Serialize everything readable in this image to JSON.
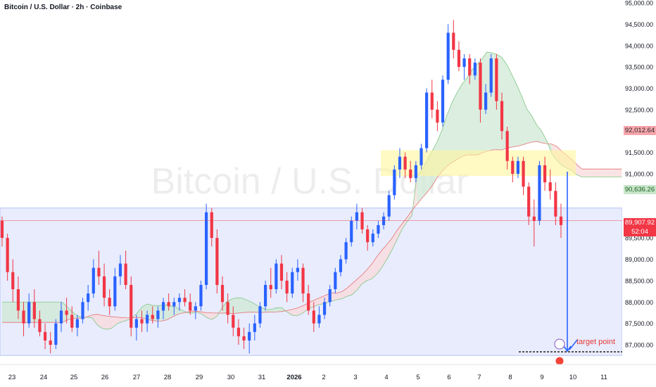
{
  "header": {
    "title": "Bitcoin / U.S. Dollar · 2h · Coinbase"
  },
  "watermark": "Bitcoin / U.S. Dollar",
  "price_tags": {
    "upper": "92,012.64",
    "middle": "90,636.26",
    "current": "89,907.92",
    "countdown": "52:04"
  },
  "annotation": {
    "target_label": "target point"
  },
  "colors": {
    "up": "#2962ff",
    "down": "#f23645",
    "zone_blue": "#e8ecfd",
    "zone_yellow": "#fff59d",
    "cloud_green": "#cfe8d4",
    "cloud_red": "#f9d9db",
    "tag_red": "#f6a5ab",
    "tag_green": "#c8e6c9"
  },
  "chart_data": {
    "type": "candlestick",
    "title": "Bitcoin / U.S. Dollar · 2h · Coinbase",
    "y_axis": {
      "ticks": [
        95000,
        94500,
        94000,
        93500,
        93000,
        92500,
        92000,
        91500,
        91000,
        90500,
        90000,
        89500,
        89000,
        88500,
        88000,
        87500,
        87000
      ],
      "tick_labels": [
        "95,000.00",
        "94,500.00",
        "94,000.00",
        "93,500.00",
        "93,000.00",
        "92,500.00",
        "",
        "91,500.00",
        "91,000.00",
        "",
        "",
        "89,500.00",
        "89,000.00",
        "88,500.00",
        "88,000.00",
        "87,500.00",
        "87,000.00"
      ],
      "ylim": [
        86700,
        95000
      ]
    },
    "x_axis": {
      "ticks": [
        "23",
        "24",
        "25",
        "26",
        "27",
        "28",
        "29",
        "30",
        "31",
        "2026",
        "2",
        "3",
        "4",
        "5",
        "6",
        "7",
        "8",
        "9",
        "10",
        "11"
      ]
    },
    "current_price": 89907.92,
    "ichimoku_levels": {
      "span_a_last": 92012.64,
      "span_b_last": 90636.26
    },
    "zones": [
      {
        "name": "support range",
        "from": 86750,
        "to": 90200
      },
      {
        "name": "resistance band",
        "from": 90950,
        "to": 91550
      }
    ],
    "target_point": 87000,
    "candles": [
      [
        89900,
        90000,
        89300,
        89500
      ],
      [
        89500,
        89600,
        88500,
        88700
      ],
      [
        88700,
        89000,
        88000,
        88300
      ],
      [
        88300,
        88600,
        87600,
        87800
      ],
      [
        87800,
        88000,
        87200,
        87500
      ],
      [
        87500,
        88200,
        87400,
        88000
      ],
      [
        88000,
        88300,
        87400,
        87600
      ],
      [
        87600,
        87800,
        87200,
        87300
      ],
      [
        87300,
        87500,
        86900,
        87100
      ],
      [
        87100,
        87300,
        86800,
        87000
      ],
      [
        87000,
        87600,
        86900,
        87500
      ],
      [
        87500,
        88000,
        87300,
        87800
      ],
      [
        87800,
        88100,
        87500,
        87700
      ],
      [
        87700,
        87900,
        87300,
        87400
      ],
      [
        87400,
        87700,
        87200,
        87600
      ],
      [
        87600,
        88100,
        87500,
        88000
      ],
      [
        88000,
        88400,
        87800,
        88200
      ],
      [
        88200,
        89000,
        88100,
        88800
      ],
      [
        88800,
        89200,
        88400,
        88600
      ],
      [
        88600,
        88900,
        87900,
        88100
      ],
      [
        88100,
        88300,
        87700,
        87900
      ],
      [
        87900,
        88800,
        87800,
        88600
      ],
      [
        88600,
        89100,
        88400,
        88900
      ],
      [
        88900,
        89200,
        88300,
        88400
      ],
      [
        88400,
        88600,
        87200,
        87400
      ],
      [
        87400,
        87700,
        87100,
        87600
      ],
      [
        87600,
        87800,
        87300,
        87500
      ],
      [
        87500,
        87800,
        87300,
        87700
      ],
      [
        87700,
        87900,
        87500,
        87600
      ],
      [
        87600,
        87900,
        87400,
        87800
      ],
      [
        87800,
        88100,
        87600,
        88000
      ],
      [
        88000,
        88200,
        87800,
        87900
      ],
      [
        87900,
        88100,
        87700,
        88000
      ],
      [
        88000,
        88200,
        87800,
        88100
      ],
      [
        88100,
        88300,
        87900,
        88000
      ],
      [
        88000,
        88200,
        87700,
        87800
      ],
      [
        87800,
        88000,
        87600,
        87900
      ],
      [
        87900,
        88500,
        87800,
        88400
      ],
      [
        88400,
        90300,
        88300,
        90100
      ],
      [
        90100,
        90200,
        89300,
        89500
      ],
      [
        89500,
        89700,
        88200,
        88400
      ],
      [
        88400,
        88600,
        87800,
        88000
      ],
      [
        88000,
        88200,
        87500,
        87700
      ],
      [
        87700,
        87900,
        87200,
        87400
      ],
      [
        87400,
        87600,
        87000,
        87200
      ],
      [
        87200,
        87400,
        86900,
        87100
      ],
      [
        87100,
        87500,
        86800,
        87300
      ],
      [
        87300,
        87700,
        87100,
        87500
      ],
      [
        87500,
        88000,
        87400,
        87900
      ],
      [
        87900,
        88500,
        87800,
        88400
      ],
      [
        88400,
        88800,
        88100,
        88300
      ],
      [
        88300,
        89000,
        88200,
        88900
      ],
      [
        88900,
        89100,
        88300,
        88500
      ],
      [
        88500,
        88700,
        88000,
        88200
      ],
      [
        88200,
        88800,
        88100,
        88700
      ],
      [
        88700,
        89000,
        88500,
        88800
      ],
      [
        88800,
        88900,
        88000,
        88200
      ],
      [
        88200,
        88400,
        87700,
        87800
      ],
      [
        87800,
        88000,
        87300,
        87500
      ],
      [
        87500,
        87900,
        87400,
        87700
      ],
      [
        87700,
        88100,
        87600,
        88000
      ],
      [
        88000,
        88400,
        87900,
        88300
      ],
      [
        88300,
        88800,
        88200,
        88700
      ],
      [
        88700,
        89100,
        88600,
        89000
      ],
      [
        89000,
        89500,
        88900,
        89400
      ],
      [
        89400,
        90000,
        89300,
        89900
      ],
      [
        89900,
        90300,
        89700,
        90100
      ],
      [
        90100,
        90200,
        89600,
        89700
      ],
      [
        89700,
        89800,
        89200,
        89400
      ],
      [
        89400,
        89700,
        89300,
        89600
      ],
      [
        89600,
        89900,
        89500,
        89800
      ],
      [
        89800,
        90100,
        89700,
        90000
      ],
      [
        90000,
        90600,
        89900,
        90500
      ],
      [
        90500,
        91200,
        90400,
        91100
      ],
      [
        91100,
        91600,
        90900,
        91400
      ],
      [
        91400,
        91500,
        90900,
        91100
      ],
      [
        91100,
        91300,
        90800,
        90900
      ],
      [
        90900,
        91300,
        90800,
        91200
      ],
      [
        91200,
        91700,
        91100,
        91600
      ],
      [
        91600,
        93000,
        91500,
        92900
      ],
      [
        92900,
        93200,
        92300,
        92500
      ],
      [
        92500,
        92700,
        92000,
        92200
      ],
      [
        92200,
        93300,
        92100,
        93200
      ],
      [
        93200,
        94500,
        93100,
        94300
      ],
      [
        94300,
        94600,
        93700,
        93900
      ],
      [
        93900,
        94100,
        93400,
        93500
      ],
      [
        93500,
        93800,
        93200,
        93700
      ],
      [
        93700,
        93800,
        93100,
        93300
      ],
      [
        93300,
        93700,
        93200,
        93600
      ],
      [
        93600,
        93700,
        92200,
        92500
      ],
      [
        92500,
        93100,
        92400,
        92900
      ],
      [
        92900,
        93800,
        92800,
        93700
      ],
      [
        93700,
        93800,
        92500,
        92700
      ],
      [
        92700,
        92900,
        91800,
        92000
      ],
      [
        92000,
        92100,
        91100,
        91300
      ],
      [
        91300,
        91400,
        90800,
        91000
      ],
      [
        91000,
        91400,
        90900,
        91300
      ],
      [
        91300,
        91400,
        90500,
        90700
      ],
      [
        90700,
        90800,
        89800,
        90000
      ],
      [
        90000,
        90400,
        89300,
        89900
      ],
      [
        89900,
        91300,
        89800,
        91200
      ],
      [
        91200,
        91400,
        90600,
        90800
      ],
      [
        90800,
        91100,
        90400,
        90600
      ],
      [
        90600,
        90800,
        89800,
        90000
      ],
      [
        90000,
        90300,
        89500,
        89800
      ]
    ]
  }
}
